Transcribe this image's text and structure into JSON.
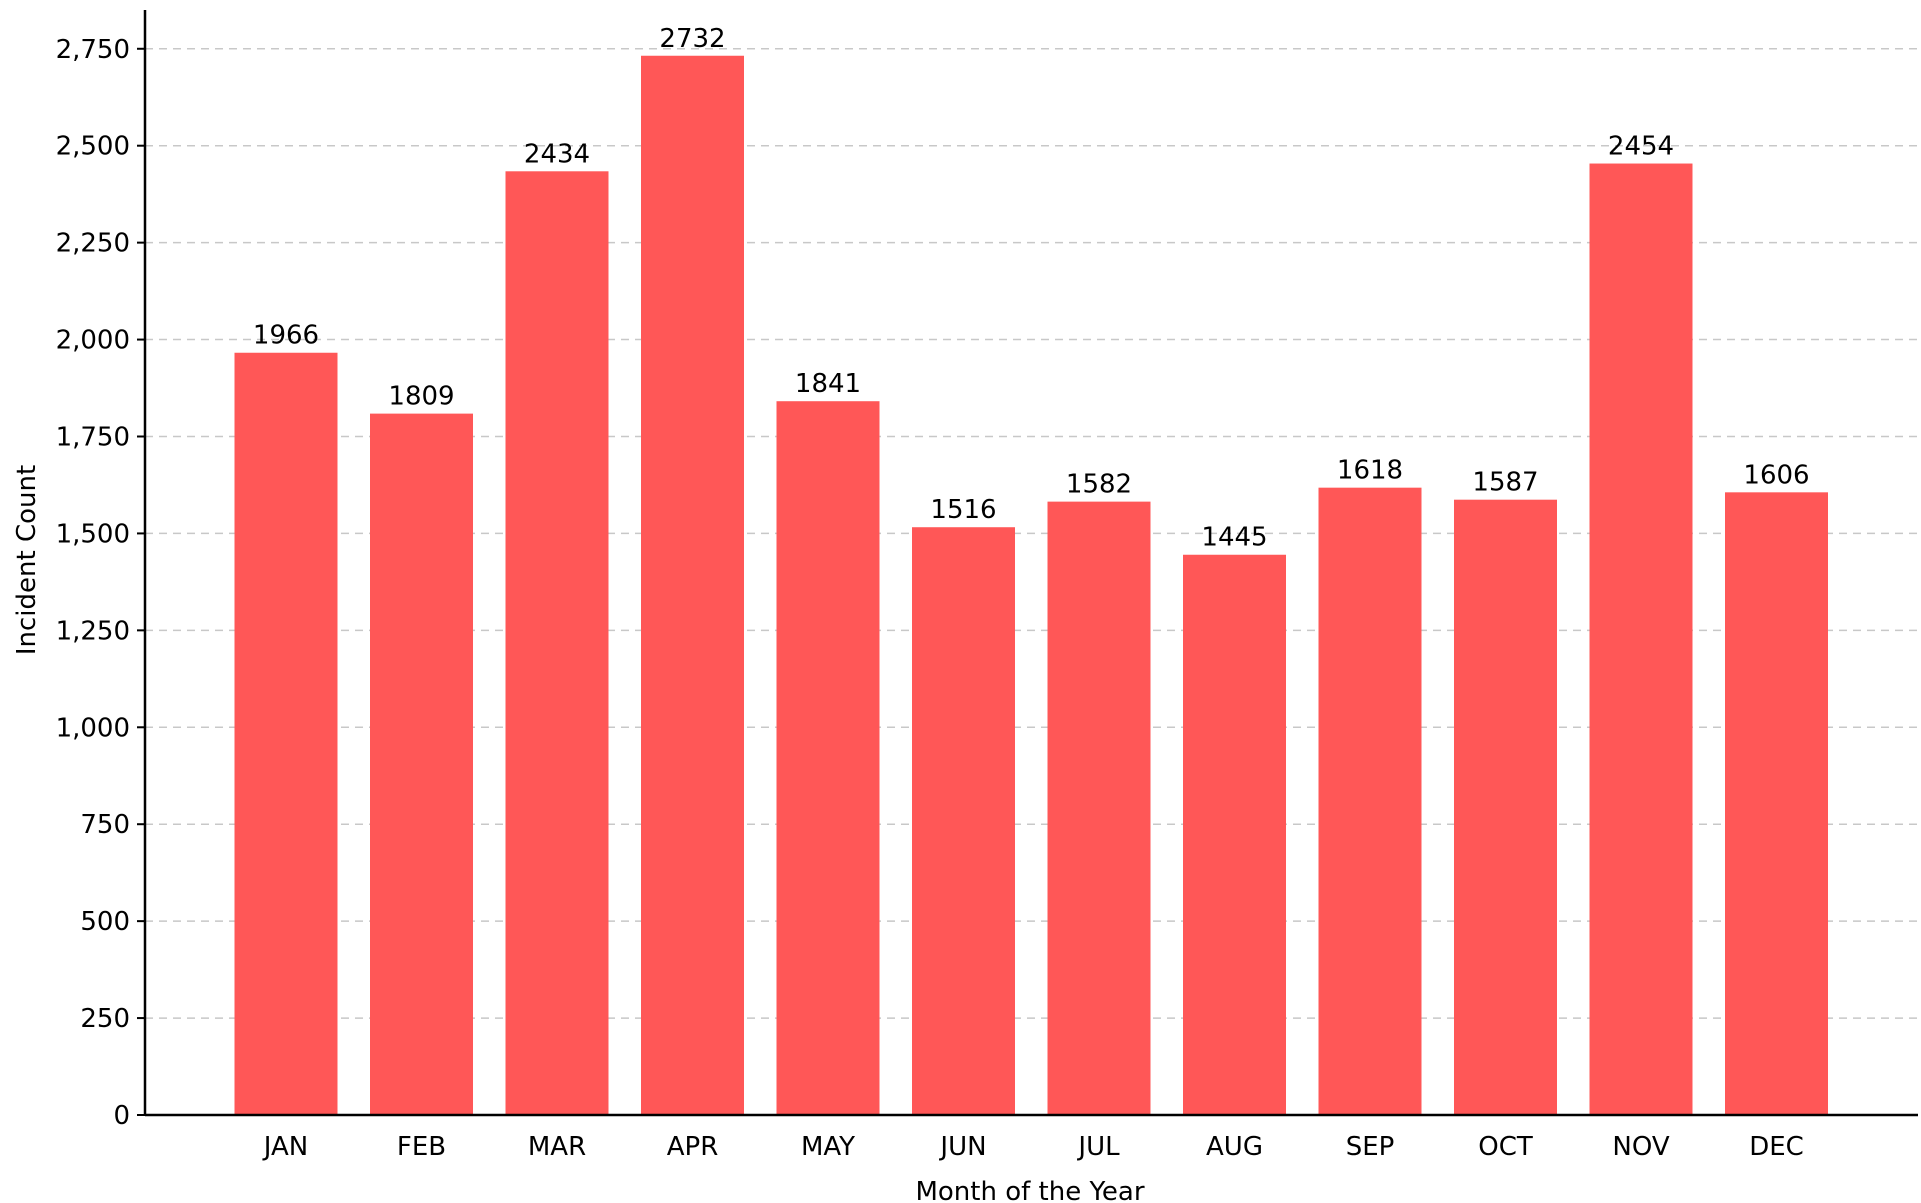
{
  "chart_data": {
    "type": "bar",
    "xlabel": "Month of the Year",
    "ylabel": "Incident Count",
    "ylim": [
      0,
      2850
    ],
    "yticks": [
      0,
      250,
      500,
      750,
      1000,
      1250,
      1500,
      1750,
      2000,
      2250,
      2500,
      2750
    ],
    "ytick_labels": [
      "0",
      "250",
      "500",
      "750",
      "1,000",
      "1,250",
      "1,500",
      "1,750",
      "2,000",
      "2,250",
      "2,500",
      "2,750"
    ],
    "grid": true,
    "categories": [
      "JAN",
      "FEB",
      "MAR",
      "APR",
      "MAY",
      "JUN",
      "JUL",
      "AUG",
      "SEP",
      "OCT",
      "NOV",
      "DEC"
    ],
    "values": [
      1966,
      1809,
      2434,
      2732,
      1841,
      1516,
      1582,
      1445,
      1618,
      1587,
      2454,
      1606
    ],
    "data_labels": [
      "1966",
      "1809",
      "2434",
      "2732",
      "1841",
      "1516",
      "1582",
      "1445",
      "1618",
      "1587",
      "2454",
      "1606"
    ],
    "bar_color": "#ff5757"
  }
}
